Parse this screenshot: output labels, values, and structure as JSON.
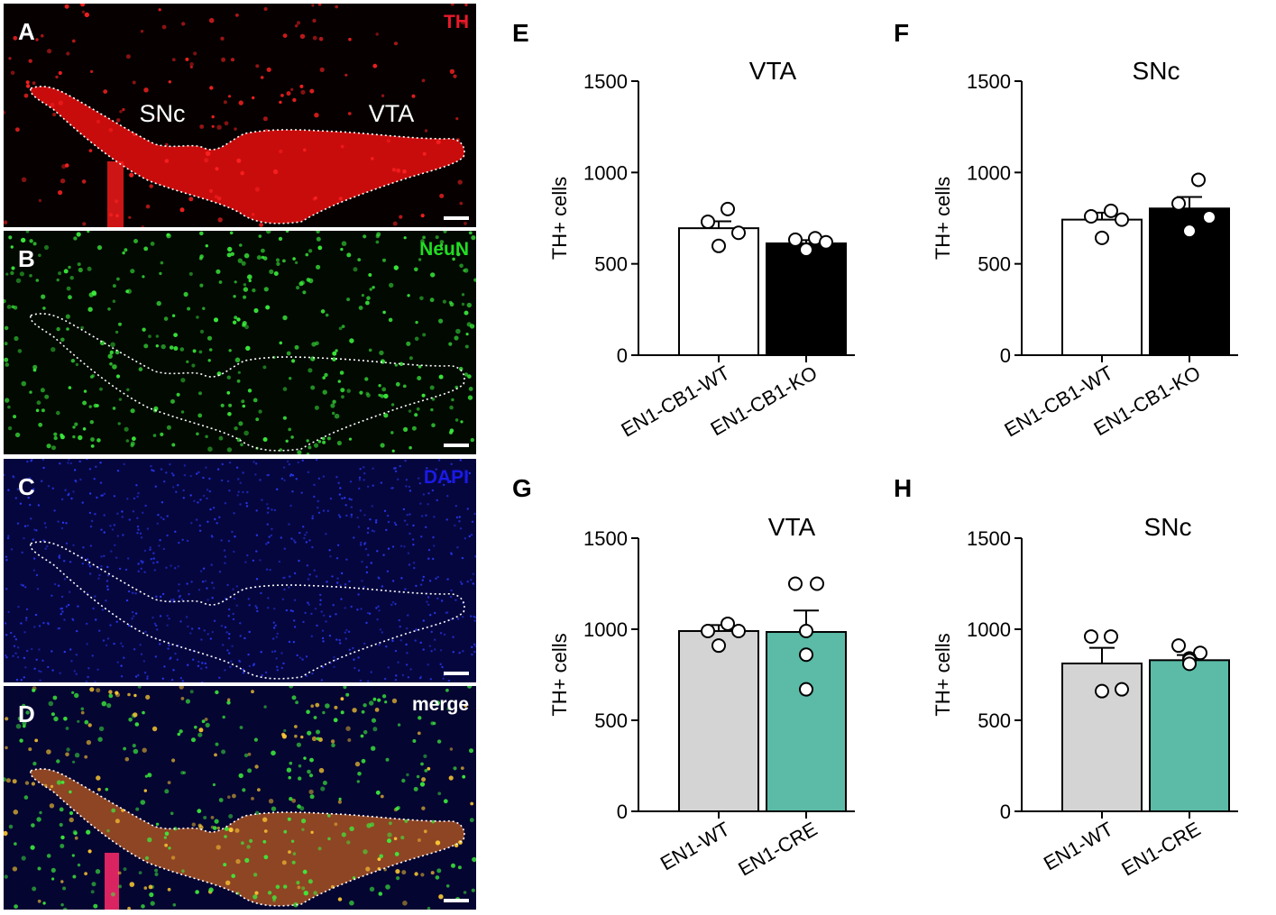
{
  "micrographs": [
    {
      "letter": "A",
      "stain": "TH",
      "stain_color": "#e8192a",
      "region_labels": [
        "SNc",
        "VTA"
      ],
      "bg": "#060000",
      "dot": "#ff2222",
      "fill": "#ff0f0f"
    },
    {
      "letter": "B",
      "stain": "NeuN",
      "stain_color": "#22dd22",
      "region_labels": [],
      "bg": "#010901",
      "dot": "#3cf03c",
      "fill": null
    },
    {
      "letter": "C",
      "stain": "DAPI",
      "stain_color": "#1a1ae6",
      "region_labels": [],
      "bg": "#06063f",
      "dot": "#2a3cff",
      "fill": null
    },
    {
      "letter": "D",
      "stain": "merge",
      "stain_color": "#ffffff",
      "region_labels": [],
      "bg": "#050531",
      "dot": "#3cf03c",
      "fill": "#ff7a1a"
    }
  ],
  "chart_data": [
    {
      "panel": "E",
      "type": "bar",
      "title": "VTA",
      "ylabel": "TH+ cells",
      "ylim": [
        0,
        1500
      ],
      "yticks": [
        0,
        500,
        1000,
        1500
      ],
      "categories": [
        "EN1-CB1-WT",
        "EN1-CB1-KO"
      ],
      "values": [
        695,
        612
      ],
      "sem": [
        38,
        18
      ],
      "colors": [
        "#ffffff",
        "#000000"
      ],
      "points": [
        [
          800,
          730,
          670,
          598
        ],
        [
          640,
          632,
          618,
          577
        ]
      ]
    },
    {
      "panel": "F",
      "type": "bar",
      "title": "SNc",
      "ylabel": "TH+ cells",
      "ylim": [
        0,
        1500
      ],
      "yticks": [
        0,
        500,
        1000,
        1500
      ],
      "categories": [
        "EN1-CB1-WT",
        "EN1-CB1-KO"
      ],
      "values": [
        742,
        803
      ],
      "sem": [
        38,
        63
      ],
      "colors": [
        "#ffffff",
        "#000000"
      ],
      "points": [
        [
          790,
          760,
          742,
          642
        ],
        [
          960,
          830,
          755,
          680
        ]
      ]
    },
    {
      "panel": "G",
      "type": "bar",
      "title": "VTA",
      "ylabel": "TH+ cells",
      "ylim": [
        0,
        1500
      ],
      "yticks": [
        0,
        500,
        1000,
        1500
      ],
      "categories": [
        "EN1-WT",
        "EN1-CRE"
      ],
      "values": [
        990,
        985
      ],
      "sem": [
        33,
        118
      ],
      "colors": [
        "#d4d4d4",
        "#5bbba6"
      ],
      "points": [
        [
          1030,
          990,
          990,
          910
        ],
        [
          1250,
          1250,
          990,
          860,
          670
        ]
      ]
    },
    {
      "panel": "H",
      "type": "bar",
      "title": "SNc",
      "ylabel": "TH+ cells",
      "ylim": [
        0,
        1500
      ],
      "yticks": [
        0,
        500,
        1000,
        1500
      ],
      "categories": [
        "EN1-WT",
        "EN1-CRE"
      ],
      "values": [
        812,
        830
      ],
      "sem": [
        86,
        28
      ],
      "colors": [
        "#d4d4d4",
        "#5bbba6"
      ],
      "points": [
        [
          960,
          960,
          670,
          660
        ],
        [
          910,
          870,
          840,
          830,
          810
        ]
      ]
    }
  ]
}
